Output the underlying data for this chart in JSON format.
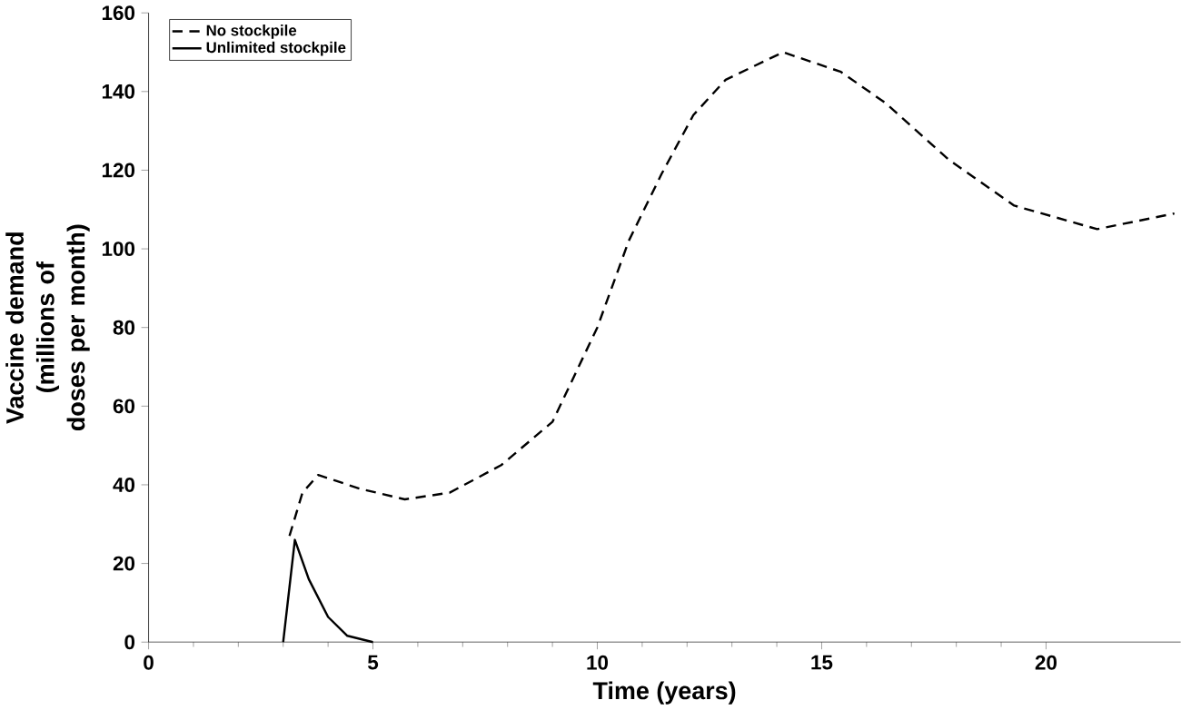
{
  "chart_data": {
    "type": "line",
    "xlabel": "Time (years)",
    "ylabel": "Vaccine demand (millions of doses per month)",
    "xlim": [
      0,
      23
    ],
    "ylim": [
      0,
      160
    ],
    "xticks": [
      0,
      5,
      10,
      15,
      20
    ],
    "yticks": [
      0,
      20,
      40,
      60,
      80,
      100,
      120,
      140,
      160
    ],
    "grid": false,
    "legend": "top left",
    "marker": "none",
    "series": [
      {
        "name": "No stockpile",
        "color": "#000000",
        "line_style": "dashed",
        "x": [
          3.14,
          3.43,
          3.78,
          4.71,
          5.71,
          6.71,
          7.86,
          9.0,
          10.0,
          10.7,
          11.43,
          12.14,
          12.86,
          14.14,
          15.43,
          16.43,
          17.85,
          19.29,
          21.14,
          22.86
        ],
        "values": [
          27,
          38,
          42.5,
          39,
          36.3,
          38,
          45,
          56,
          80,
          102,
          119,
          134,
          143,
          150,
          145,
          137,
          122.5,
          111,
          105,
          109
        ]
      },
      {
        "name": "Unlimited stockpile",
        "color": "#000000",
        "line_style": "solid",
        "x": [
          3.0,
          3.26,
          3.57,
          4.0,
          4.43,
          5.0
        ],
        "values": [
          0,
          26,
          16,
          6.4,
          1.6,
          0
        ]
      }
    ]
  }
}
